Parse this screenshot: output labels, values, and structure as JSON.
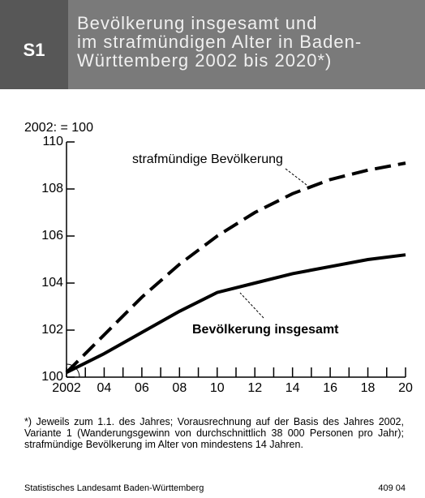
{
  "chart_data": {
    "type": "line",
    "badge": "S1",
    "title": [
      "Bevölkerung insgesamt und",
      "im strafmündigen Alter in Baden-",
      "Württemberg 2002 bis 2020*)"
    ],
    "ylabel": "2002: = 100",
    "x": [
      2002,
      2004,
      2006,
      2008,
      2010,
      2012,
      2014,
      2016,
      2018,
      2020
    ],
    "xlim": [
      2002,
      2020
    ],
    "xticks": [
      2002,
      {
        "value": 2004,
        "label": "04"
      },
      {
        "value": 2006,
        "label": "06"
      },
      {
        "value": 2008,
        "label": "08"
      },
      {
        "value": 2010,
        "label": "10"
      },
      {
        "value": 2012,
        "label": "12"
      },
      {
        "value": 2014,
        "label": "14"
      },
      {
        "value": 2016,
        "label": "16"
      },
      {
        "value": 2018,
        "label": "18"
      },
      {
        "value": 2020,
        "label": "20"
      }
    ],
    "xminorticks": [
      2003,
      2005,
      2007,
      2009,
      2011,
      2013,
      2015,
      2017,
      2019
    ],
    "ylim": [
      100,
      110
    ],
    "yticks": [
      100,
      102,
      104,
      106,
      108,
      110
    ],
    "series": [
      {
        "name": "Bevölkerung insgesamt",
        "color": "#000000",
        "dashed": false,
        "bold": true,
        "values": [
          100.2,
          101.0,
          101.9,
          102.8,
          103.6,
          104.0,
          104.4,
          104.7,
          105.0,
          105.2
        ]
      },
      {
        "name": "strafmündige Bevölkerung",
        "color": "#000000",
        "dashed": true,
        "bold": false,
        "values": [
          100.2,
          101.8,
          103.4,
          104.8,
          106.0,
          107.0,
          107.8,
          108.4,
          108.8,
          109.1
        ]
      }
    ],
    "footnote": "*) Jeweils zum 1.1. des Jahres; Vorausrechnung auf der Basis des Jahres 2002, Variante 1 (Wanderungsgewinn von durchschnittlich 38 000 Personen pro Jahr); strafmündige Bevölkerung im Alter von mindestens 14 Jahren.",
    "source": "Statistisches Landesamt Baden-Württemberg",
    "code": "409 04"
  }
}
